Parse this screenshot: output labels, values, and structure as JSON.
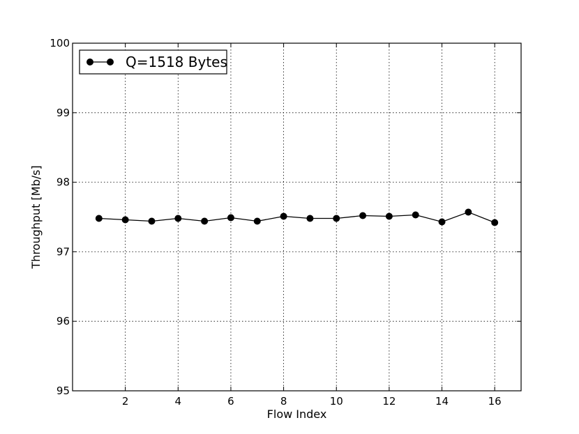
{
  "chart_data": {
    "type": "line",
    "title": "",
    "xlabel": "Flow Index",
    "ylabel": "Throughput [Mb/s]",
    "xlim": [
      0,
      17
    ],
    "ylim": [
      95,
      100
    ],
    "x_ticks": [
      2,
      4,
      6,
      8,
      10,
      12,
      14,
      16
    ],
    "x_tick_labels": [
      "2",
      "4",
      "6",
      "8",
      "10",
      "12",
      "14",
      "16"
    ],
    "y_ticks": [
      95,
      96,
      97,
      98,
      99,
      100
    ],
    "y_tick_labels": [
      "95",
      "96",
      "97",
      "98",
      "99",
      "100"
    ],
    "grid": true,
    "legend_position": "top-left",
    "x": [
      1,
      2,
      3,
      4,
      5,
      6,
      7,
      8,
      9,
      10,
      11,
      12,
      13,
      14,
      15,
      16
    ],
    "series": [
      {
        "name": "Q=1518 Bytes",
        "color": "#000000",
        "marker": "circle",
        "values": [
          97.48,
          97.46,
          97.44,
          97.48,
          97.44,
          97.49,
          97.44,
          97.51,
          97.48,
          97.48,
          97.52,
          97.51,
          97.53,
          97.43,
          97.57,
          97.42
        ]
      }
    ]
  }
}
